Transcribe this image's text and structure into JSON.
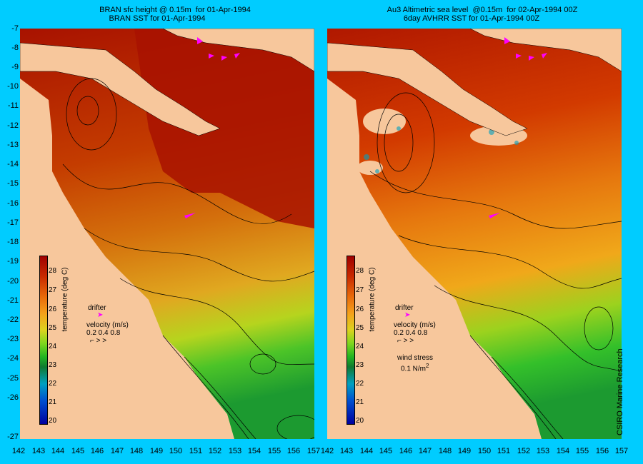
{
  "left_title_line1": "BRAN sfc height @ 0.15m  for 01-Apr-1994",
  "left_title_line2": "BRAN SST for 01-Apr-1994",
  "right_title_line1": "Au3 Altimetric sea level  @0.15m  for 02-Apr-1994 00Z",
  "right_title_line2": "6day AVHRR SST for 01-Apr-1994 00Z",
  "y_ticks": [
    "-7",
    "-8",
    "-9",
    "-10",
    "-11",
    "-12",
    "-13",
    "-14",
    "-15",
    "-16",
    "-17",
    "-18",
    "-19",
    "-20",
    "-21",
    "-22",
    "-23",
    "-24",
    "-25",
    "-26",
    "-27"
  ],
  "x_ticks": [
    "142",
    "143",
    "144",
    "145",
    "146",
    "147",
    "148",
    "149",
    "150",
    "151",
    "152",
    "153",
    "154",
    "155",
    "156",
    "157"
  ],
  "colorbar_ticks": [
    "28",
    "27",
    "26",
    "25",
    "24",
    "23",
    "22",
    "21",
    "20"
  ],
  "colorbar_label": "temperature (deg C)",
  "drifter_label": "drifter",
  "velocity_label": "velocity (m/s)",
  "velocity_scale": "0.2 0.4 0.8",
  "wind_label": "wind stress",
  "wind_value": "0.1 N/m",
  "wind_sup": "2",
  "credit": "CSIRO Marine Research",
  "colors": {
    "warm": "#b01800",
    "land": "#f7c79c",
    "frame": "#00ccff",
    "arrow": "#ff00ff"
  }
}
